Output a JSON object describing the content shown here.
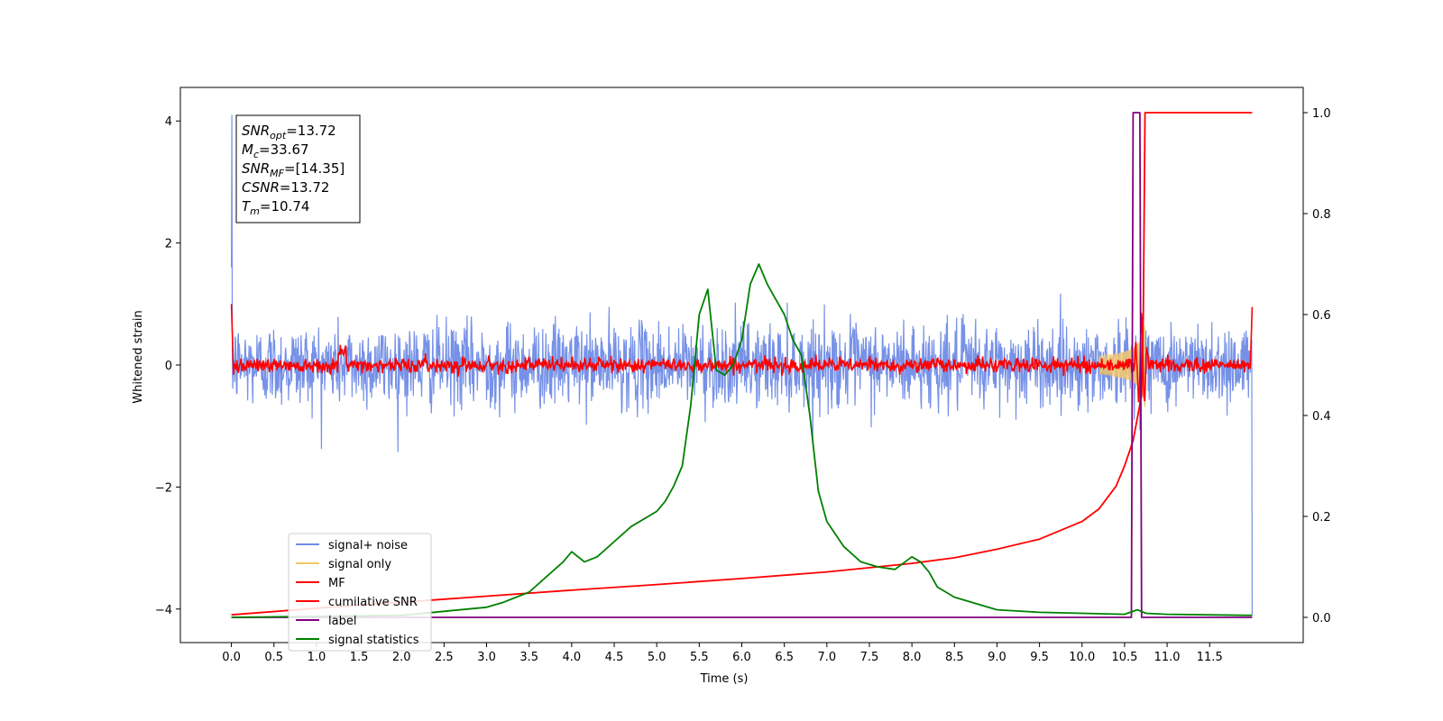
{
  "chart_data": {
    "type": "line",
    "title": "",
    "xlabel": "Time (s)",
    "ylabel": "Whitened strain",
    "xlim": [
      -0.6,
      12.6
    ],
    "ylim": [
      -4.55,
      4.55
    ],
    "y2lim": [
      -0.05,
      1.05
    ],
    "x_ticks": [
      "0.0",
      "0.5",
      "1.0",
      "1.5",
      "2.0",
      "2.5",
      "3.0",
      "3.5",
      "4.0",
      "4.5",
      "5.0",
      "5.5",
      "6.0",
      "6.5",
      "7.0",
      "7.5",
      "8.0",
      "8.5",
      "9.0",
      "9.5",
      "10.0",
      "10.5",
      "11.0",
      "11.5"
    ],
    "y_ticks": [
      "4",
      "2",
      "0",
      "−2",
      "−4"
    ],
    "y2_ticks": [
      "1.0",
      "0.8",
      "0.6",
      "0.4",
      "0.2",
      "0.0"
    ],
    "grid": false,
    "legend_placement": "lower-left",
    "annotation": [
      {
        "name": "SNR",
        "sub": "opt",
        "value": "=13.72"
      },
      {
        "name": "M",
        "sub": "c",
        "value": "=33.67"
      },
      {
        "name": "SNR",
        "sub": "MF",
        "value": "=[14.35]"
      },
      {
        "name": "CSNR",
        "sub": "",
        "value": "=13.72"
      },
      {
        "name": "T",
        "sub": "m",
        "value": "=10.74"
      }
    ],
    "series": [
      {
        "name": "signal+ noise",
        "axis": "left",
        "color": "#6f8be6",
        "noise_std": 0.55,
        "x_range": [
          0.0,
          12.0
        ]
      },
      {
        "name": "signal only",
        "axis": "left",
        "color": "#f5c76b",
        "chirp_end": 10.74,
        "chirp_peak": 0.8
      },
      {
        "name": "MF",
        "axis": "left",
        "color": "#ff0000",
        "noise_std": 0.06,
        "x_range": [
          0.0,
          12.0
        ]
      },
      {
        "name": "cumilative SNR",
        "axis": "right",
        "color": "#ff0000",
        "x": [
          0.0,
          1.0,
          2.0,
          3.0,
          4.0,
          5.0,
          6.0,
          7.0,
          8.0,
          8.5,
          9.0,
          9.5,
          10.0,
          10.2,
          10.4,
          10.5,
          10.6,
          10.7,
          10.72,
          10.74,
          12.0
        ],
        "values": [
          0.005,
          0.018,
          0.03,
          0.042,
          0.054,
          0.065,
          0.077,
          0.09,
          0.107,
          0.118,
          0.135,
          0.155,
          0.19,
          0.215,
          0.26,
          0.3,
          0.35,
          0.44,
          0.6,
          1.0,
          1.0
        ]
      },
      {
        "name": "label",
        "axis": "right",
        "color": "#800080",
        "x": [
          0.0,
          10.58,
          10.6,
          10.68,
          10.7,
          11.0,
          12.0
        ],
        "values": [
          0.0,
          0.0,
          1.0,
          1.0,
          0.0,
          0.0,
          0.0
        ]
      },
      {
        "name": "signal statistics",
        "axis": "right",
        "color": "#008000",
        "x": [
          0.0,
          1.0,
          2.0,
          2.5,
          3.0,
          3.2,
          3.5,
          3.7,
          3.9,
          4.0,
          4.15,
          4.3,
          4.5,
          4.7,
          4.9,
          5.0,
          5.1,
          5.2,
          5.3,
          5.4,
          5.5,
          5.6,
          5.7,
          5.8,
          5.9,
          6.0,
          6.1,
          6.2,
          6.3,
          6.4,
          6.5,
          6.6,
          6.7,
          6.8,
          6.9,
          7.0,
          7.2,
          7.4,
          7.6,
          7.8,
          8.0,
          8.1,
          8.2,
          8.3,
          8.5,
          8.7,
          9.0,
          9.5,
          10.0,
          10.5,
          10.65,
          10.75,
          11.0,
          12.0
        ],
        "values": [
          0.0,
          0.002,
          0.004,
          0.012,
          0.02,
          0.03,
          0.05,
          0.08,
          0.11,
          0.13,
          0.11,
          0.12,
          0.15,
          0.18,
          0.2,
          0.21,
          0.23,
          0.26,
          0.3,
          0.42,
          0.6,
          0.65,
          0.49,
          0.48,
          0.5,
          0.55,
          0.66,
          0.7,
          0.66,
          0.63,
          0.6,
          0.55,
          0.52,
          0.4,
          0.25,
          0.19,
          0.14,
          0.11,
          0.1,
          0.095,
          0.12,
          0.11,
          0.09,
          0.06,
          0.04,
          0.03,
          0.015,
          0.01,
          0.008,
          0.006,
          0.015,
          0.008,
          0.006,
          0.004
        ]
      }
    ]
  }
}
